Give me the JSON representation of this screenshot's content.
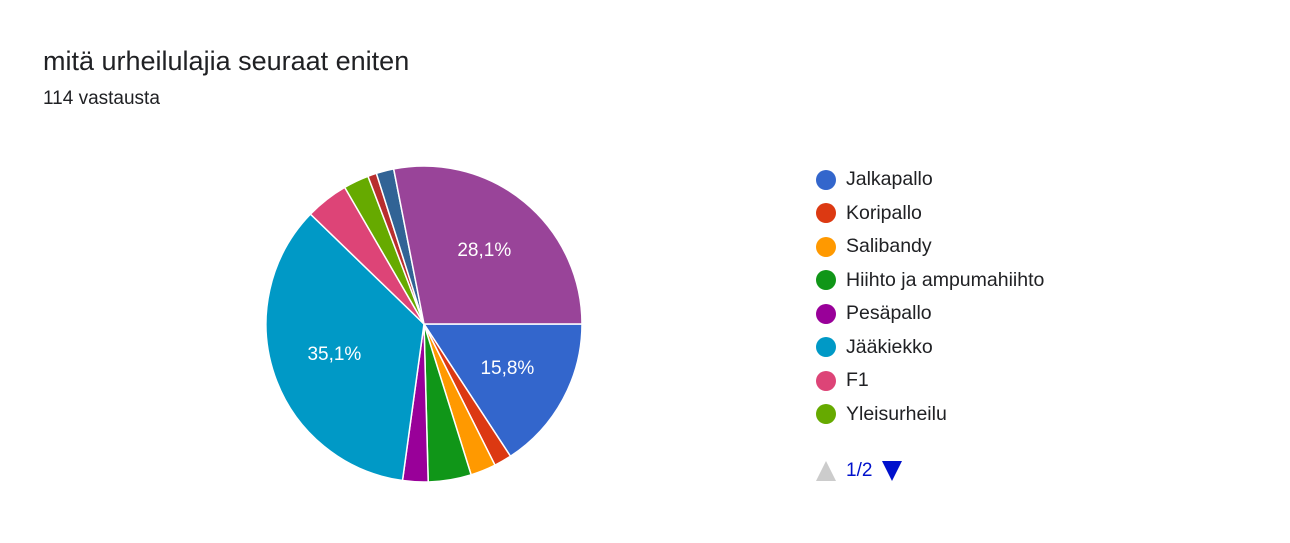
{
  "header": {
    "title": "mitä urheilulajia seuraat eniten",
    "responses": "114 vastausta"
  },
  "chart_data": {
    "type": "pie",
    "start_angle_deg": 90,
    "direction": "clockwise",
    "slices": [
      {
        "name": "Jalkapallo",
        "value": 15.8,
        "color": "#3366cc",
        "label": "15,8%"
      },
      {
        "name": "Koripallo",
        "value": 1.8,
        "color": "#dc3912",
        "label": ""
      },
      {
        "name": "Salibandy",
        "value": 2.6,
        "color": "#ff9900",
        "label": ""
      },
      {
        "name": "Hiihto ja ampumahiihto",
        "value": 4.4,
        "color": "#109618",
        "label": ""
      },
      {
        "name": "Pesäpallo",
        "value": 2.6,
        "color": "#990099",
        "label": ""
      },
      {
        "name": "Jääkiekko",
        "value": 35.1,
        "color": "#0099c6",
        "label": "35,1%"
      },
      {
        "name": "F1",
        "value": 4.4,
        "color": "#dd4477",
        "label": ""
      },
      {
        "name": "Yleisurheilu",
        "value": 2.6,
        "color": "#66aa00",
        "label": ""
      },
      {
        "name": "",
        "value": 0.9,
        "color": "#b82e2e",
        "label": ""
      },
      {
        "name": "",
        "value": 1.8,
        "color": "#316395",
        "label": ""
      },
      {
        "name": "",
        "value": 28.1,
        "color": "#994499",
        "label": "28,1%"
      }
    ],
    "legend_position": "right"
  },
  "legend": {
    "items": [
      {
        "label": "Jalkapallo",
        "color": "#3366cc"
      },
      {
        "label": "Koripallo",
        "color": "#dc3912"
      },
      {
        "label": "Salibandy",
        "color": "#ff9900"
      },
      {
        "label": "Hiihto ja ampumahiihto",
        "color": "#109618"
      },
      {
        "label": "Pesäpallo",
        "color": "#990099"
      },
      {
        "label": "Jääkiekko",
        "color": "#0099c6"
      },
      {
        "label": "F1",
        "color": "#dd4477"
      },
      {
        "label": "Yleisurheilu",
        "color": "#66aa00"
      }
    ],
    "pager": {
      "text": "1/2",
      "up_icon": "triangle-up-icon",
      "down_icon": "triangle-down-icon",
      "up_enabled": false,
      "down_enabled": true
    }
  }
}
